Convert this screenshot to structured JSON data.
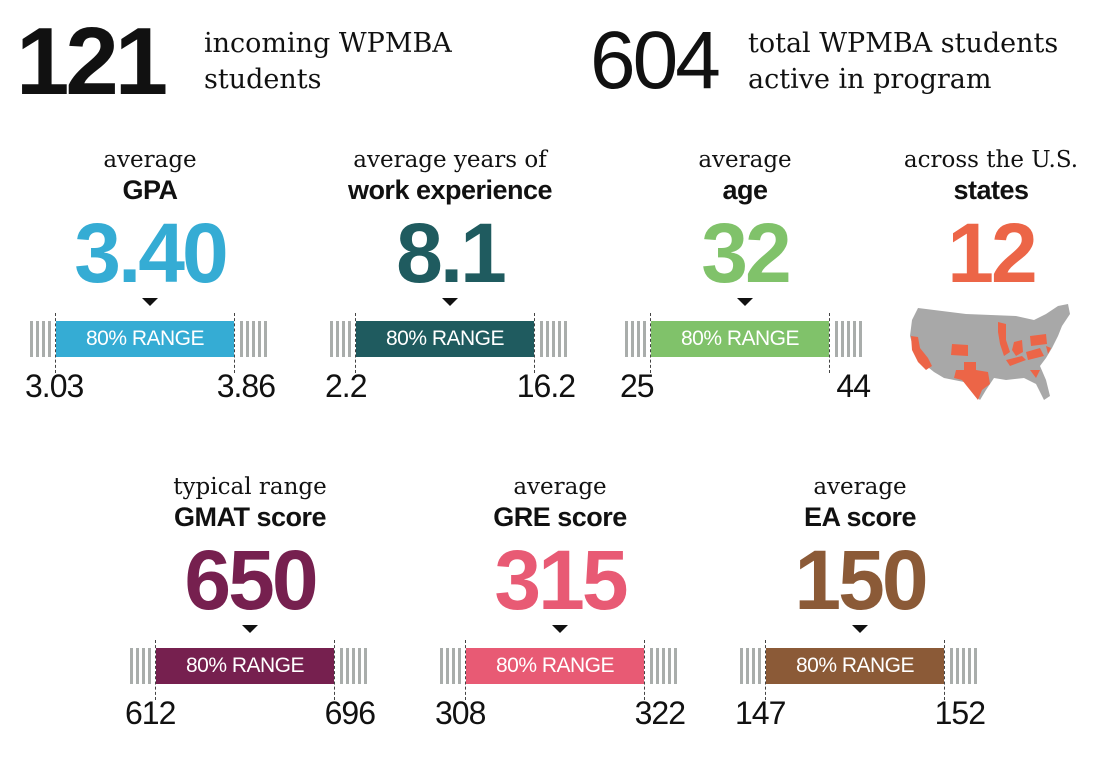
{
  "header": {
    "incoming": {
      "number": "121",
      "text": [
        "incoming WPMBA",
        "students"
      ]
    },
    "total": {
      "number": "604",
      "text": [
        "total WPMBA students",
        "active in program"
      ]
    }
  },
  "range_label": "80% RANGE",
  "stats": [
    {
      "id": "gpa",
      "label": "average",
      "bold": "GPA",
      "value": "3.40",
      "min": "3.03",
      "max": "3.86",
      "color": "#35acd4"
    },
    {
      "id": "work-experience",
      "label": "average years of",
      "bold": "work experience",
      "value": "8.1",
      "min": "2.2",
      "max": "16.2",
      "color": "#1f5b5f"
    },
    {
      "id": "age",
      "label": "average",
      "bold": "age",
      "value": "32",
      "min": "25",
      "max": "44",
      "color": "#80c26a"
    },
    {
      "id": "gmat",
      "label": "typical range",
      "bold": "GMAT score",
      "value": "650",
      "min": "612",
      "max": "696",
      "color": "#76204f"
    },
    {
      "id": "gre",
      "label": "average",
      "bold": "GRE score",
      "value": "315",
      "min": "308",
      "max": "322",
      "color": "#e85a74"
    },
    {
      "id": "ea",
      "label": "average",
      "bold": "EA score",
      "value": "150",
      "min": "147",
      "max": "152",
      "color": "#8b5a37"
    }
  ],
  "states": {
    "label": "across the U.S.",
    "bold": "states",
    "value": "12",
    "color": "#ec6547",
    "map_base": "#a8a8a8"
  }
}
